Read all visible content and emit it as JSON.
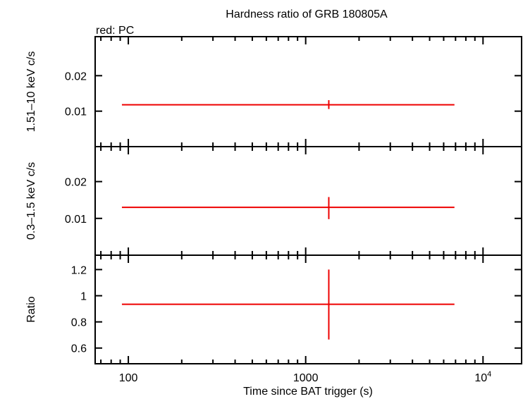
{
  "chart_data": {
    "type": "scatter",
    "title": "Hardness ratio of GRB 180805A",
    "legend": "red: PC",
    "xlabel": "Time since BAT trigger (s)",
    "xscale": "log",
    "xlim": [
      65,
      16500
    ],
    "x_ticklabels": [
      {
        "value": 100,
        "label": "100"
      },
      {
        "value": 1000,
        "label": "1000"
      },
      {
        "value": 10000,
        "base": "10",
        "exp": "4"
      }
    ],
    "series_color": "#ee0000",
    "panels": [
      {
        "name": "hard",
        "ylabel": "1.51–10 keV c/s",
        "ylim": [
          0,
          0.031
        ],
        "yticks": [
          0.01,
          0.02
        ],
        "yticklabels": [
          "0.01",
          "0.02"
        ],
        "points": [
          {
            "x": 1350,
            "xerr_low": 92,
            "xerr_high": 6900,
            "y": 0.0118,
            "yerr_low": 0.0106,
            "yerr_high": 0.0131
          }
        ]
      },
      {
        "name": "soft",
        "ylabel": "0.3–1.5 keV c/s",
        "ylim": [
          0,
          0.0295
        ],
        "yticks": [
          0.01,
          0.02
        ],
        "yticklabels": [
          "0.01",
          "0.02"
        ],
        "points": [
          {
            "x": 1350,
            "xerr_low": 92,
            "xerr_high": 6900,
            "y": 0.013,
            "yerr_low": 0.0098,
            "yerr_high": 0.0158
          }
        ]
      },
      {
        "name": "ratio",
        "ylabel": "Ratio",
        "ylim": [
          0.48,
          1.31
        ],
        "yticks": [
          0.6,
          0.8,
          1.0,
          1.2
        ],
        "yticklabels": [
          "0.6",
          "0.8",
          "1",
          "1.2"
        ],
        "points": [
          {
            "x": 1350,
            "xerr_low": 92,
            "xerr_high": 6900,
            "y": 0.935,
            "yerr_low": 0.665,
            "yerr_high": 1.2
          }
        ]
      }
    ]
  }
}
